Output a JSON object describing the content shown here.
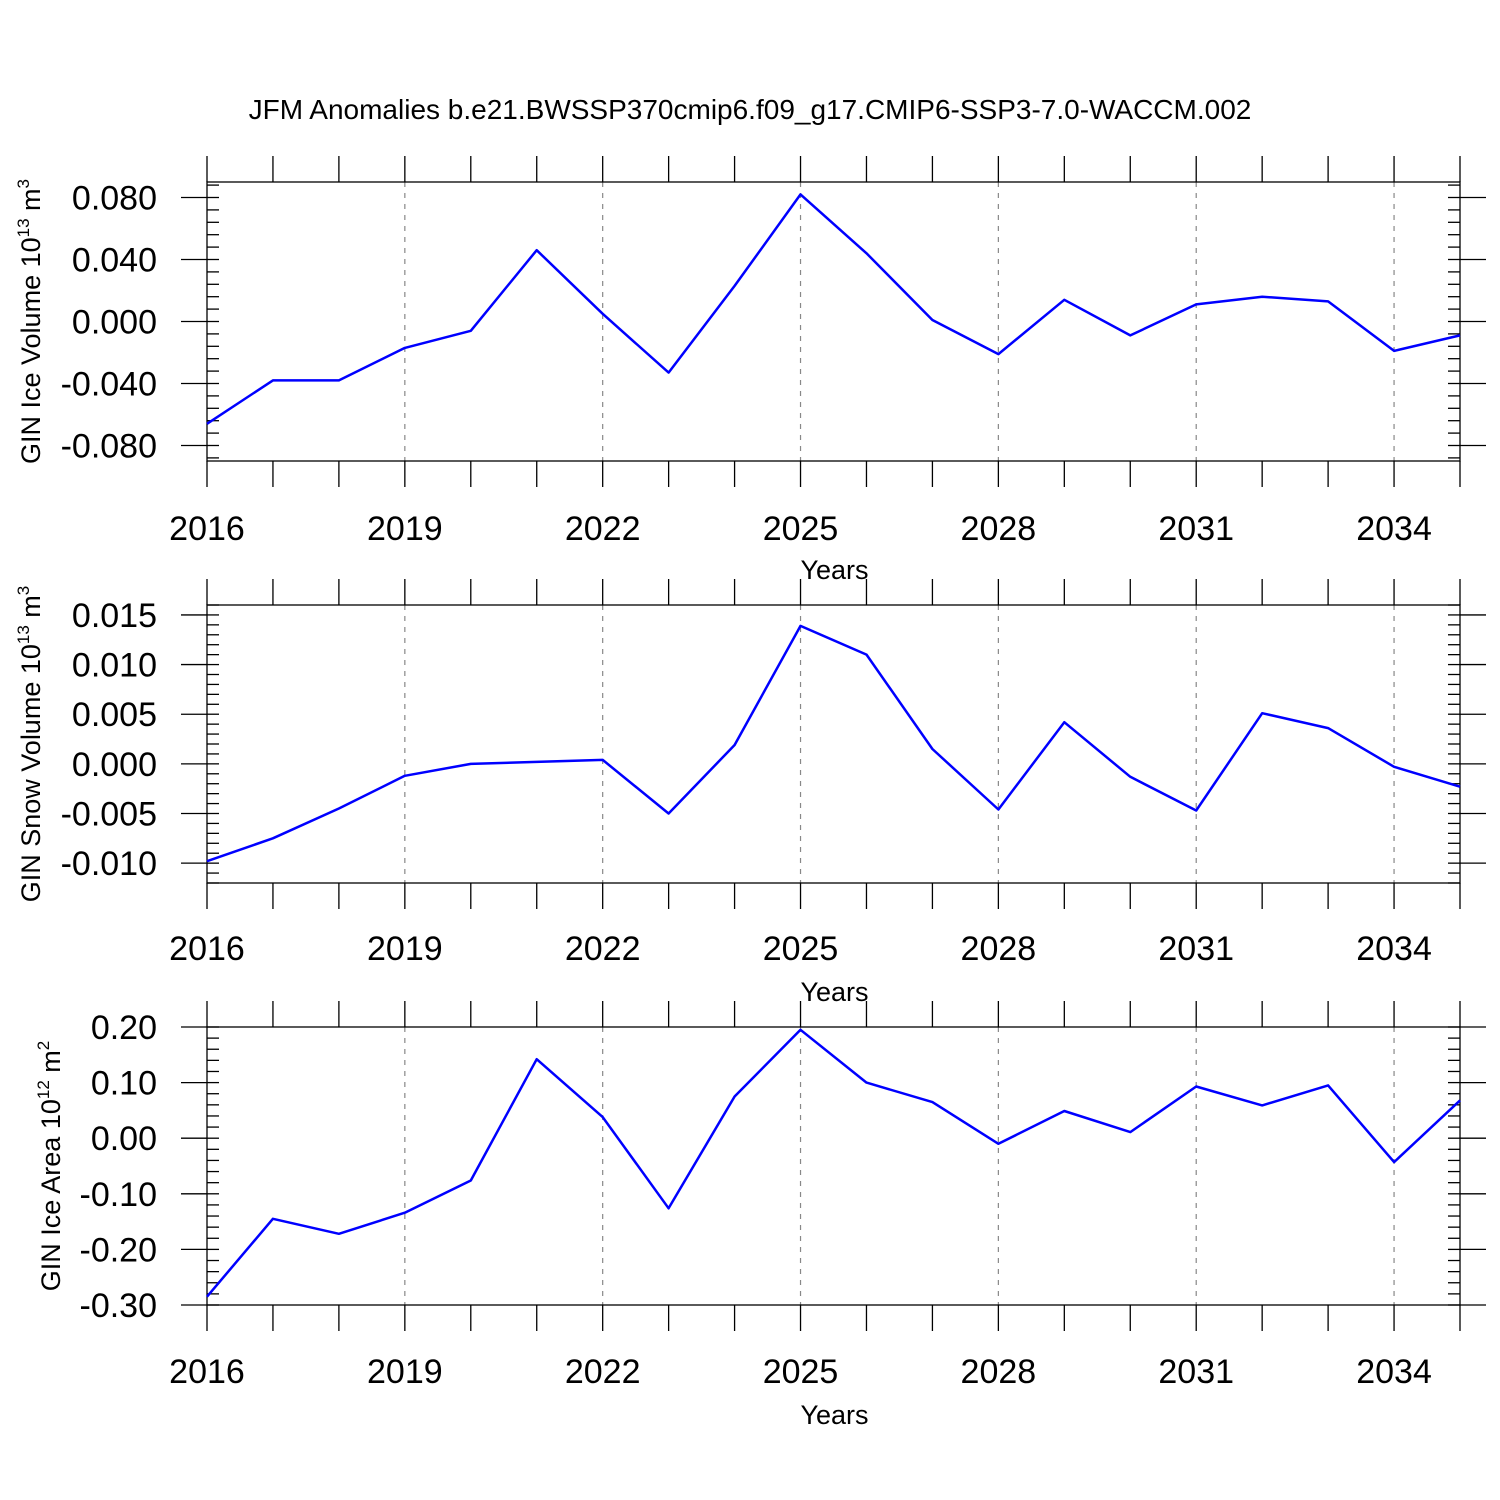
{
  "title": "JFM Anomalies b.e21.BWSSP370cmip6.f09_g17.CMIP6-SSP3-7.0-WACCM.002",
  "colors": {
    "line": "#0000ff",
    "axes": "#000000",
    "grid": "#888888"
  },
  "chart_data": [
    {
      "type": "line",
      "ylabel": {
        "text": "GIN Ice Volume 10",
        "sup": "13",
        "unit": " m",
        "unit_sup": "3"
      },
      "xlabel": "Years",
      "xlim": [
        2016,
        2035
      ],
      "ylim": [
        -0.09,
        0.09
      ],
      "xticks": [
        2016,
        2019,
        2022,
        2025,
        2028,
        2031,
        2034
      ],
      "xtick_labels": [
        "2016",
        "2019",
        "2022",
        "2025",
        "2028",
        "2031",
        "2034"
      ],
      "yticks": [
        -0.08,
        -0.04,
        0.0,
        0.04,
        0.08
      ],
      "ytick_labels": [
        "-0.080",
        "-0.040",
        "0.000",
        "0.040",
        "0.080"
      ],
      "grid": "vertical dashed at labeled years",
      "x": [
        2016,
        2017,
        2018,
        2019,
        2020,
        2021,
        2022,
        2023,
        2024,
        2025,
        2026,
        2027,
        2028,
        2029,
        2030,
        2031,
        2032,
        2033,
        2034,
        2035
      ],
      "series": [
        {
          "values": [
            -0.066,
            -0.038,
            -0.038,
            -0.017,
            -0.006,
            0.046,
            0.005,
            -0.033,
            0.023,
            0.082,
            0.044,
            0.001,
            -0.021,
            0.014,
            -0.009,
            0.011,
            0.016,
            0.013,
            -0.019,
            -0.009
          ]
        }
      ]
    },
    {
      "type": "line",
      "ylabel": {
        "text": "GIN Snow Volume 10",
        "sup": "13",
        "unit": " m",
        "unit_sup": "3"
      },
      "xlabel": "Years",
      "xlim": [
        2016,
        2035
      ],
      "ylim": [
        -0.012,
        0.016
      ],
      "xticks": [
        2016,
        2019,
        2022,
        2025,
        2028,
        2031,
        2034
      ],
      "xtick_labels": [
        "2016",
        "2019",
        "2022",
        "2025",
        "2028",
        "2031",
        "2034"
      ],
      "yticks": [
        -0.01,
        -0.005,
        0.0,
        0.005,
        0.01,
        0.015
      ],
      "ytick_labels": [
        "-0.010",
        "-0.005",
        "0.000",
        "0.005",
        "0.010",
        "0.015"
      ],
      "grid": "vertical dashed at labeled years",
      "x": [
        2016,
        2017,
        2018,
        2019,
        2020,
        2021,
        2022,
        2023,
        2024,
        2025,
        2026,
        2027,
        2028,
        2029,
        2030,
        2031,
        2032,
        2033,
        2034,
        2035
      ],
      "series": [
        {
          "values": [
            -0.0098,
            -0.0075,
            -0.0045,
            -0.0012,
            0.0,
            0.0002,
            0.0004,
            -0.005,
            0.0019,
            0.0139,
            0.011,
            0.0015,
            -0.0046,
            0.0042,
            -0.0013,
            -0.0047,
            0.0051,
            0.0036,
            -0.0003,
            -0.0023
          ]
        }
      ]
    },
    {
      "type": "line",
      "ylabel": {
        "text": "GIN Ice Area 10",
        "sup": "12",
        "unit": " m",
        "unit_sup": "2"
      },
      "xlabel": "Years",
      "xlim": [
        2016,
        2035
      ],
      "ylim": [
        -0.3,
        0.2
      ],
      "xticks": [
        2016,
        2019,
        2022,
        2025,
        2028,
        2031,
        2034
      ],
      "xtick_labels": [
        "2016",
        "2019",
        "2022",
        "2025",
        "2028",
        "2031",
        "2034"
      ],
      "yticks": [
        -0.3,
        -0.2,
        -0.1,
        0.0,
        0.1,
        0.2
      ],
      "ytick_labels": [
        "-0.30",
        "-0.20",
        "-0.10",
        "0.00",
        "0.10",
        "0.20"
      ],
      "grid": "vertical dashed at labeled years",
      "x": [
        2016,
        2017,
        2018,
        2019,
        2020,
        2021,
        2022,
        2023,
        2024,
        2025,
        2026,
        2027,
        2028,
        2029,
        2030,
        2031,
        2032,
        2033,
        2034,
        2035
      ],
      "series": [
        {
          "values": [
            -0.285,
            -0.145,
            -0.172,
            -0.134,
            -0.076,
            0.142,
            0.038,
            -0.126,
            0.075,
            0.195,
            0.1,
            0.065,
            -0.01,
            0.049,
            0.011,
            0.093,
            0.059,
            0.095,
            -0.043,
            0.068
          ]
        }
      ]
    }
  ]
}
